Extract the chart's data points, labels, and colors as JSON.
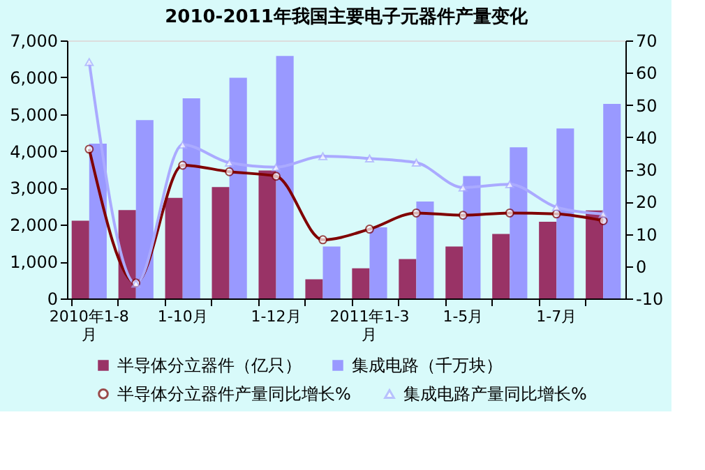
{
  "chart_data": {
    "type": "bar",
    "title": "2010-2011年我国主要电子元器件产量变化",
    "categories": [
      "2010年1-8月",
      null,
      "1-10月",
      null,
      "1-12月",
      null,
      "2011年1-3月",
      null,
      "1-5月",
      null,
      "1-7月",
      null
    ],
    "series": [
      {
        "name": "半导体分立器件（亿只）",
        "color": "#993366",
        "values": [
          2110,
          2400,
          2730,
          3020,
          3470,
          520,
          820,
          1070,
          1410,
          1750,
          2080,
          2390
        ]
      },
      {
        "name": "集成电路（千万块）",
        "color": "#9999ff",
        "values": [
          4200,
          4840,
          5430,
          5990,
          6580,
          1410,
          1930,
          2630,
          3320,
          4100,
          4610,
          5280
        ]
      },
      {
        "name": "半导体分立器件产量同比增长%",
        "type": "line",
        "axis": "y2",
        "marker": "circle",
        "color": "#800000",
        "values": [
          36.3,
          -5.2,
          31.3,
          29.3,
          27.9,
          8.2,
          11.5,
          16.5,
          15.8,
          16.5,
          16.2,
          14.1
        ]
      },
      {
        "name": "集成电路产量同比增长%",
        "type": "line",
        "axis": "y2",
        "marker": "triangle",
        "color": "#aaaaff",
        "values": [
          63.3,
          -5.4,
          37.7,
          32.1,
          30.7,
          34.1,
          33.4,
          32.1,
          24.4,
          25.4,
          18.3,
          16.2
        ]
      }
    ],
    "ylim": [
      0,
      7000
    ],
    "yticks": [
      0,
      {
        "value": 1000,
        "label": "1,000"
      },
      {
        "value": 2000,
        "label": "2,000"
      },
      {
        "value": 3000,
        "label": "3,000"
      },
      {
        "value": 4000,
        "label": "4,000"
      },
      {
        "value": 5000,
        "label": "5,000"
      },
      {
        "value": 6000,
        "label": "6,000"
      },
      {
        "value": 7000,
        "label": "7,000"
      }
    ],
    "y2lim": [
      -10,
      70
    ],
    "y2ticks": [
      -10,
      0,
      10,
      20,
      30,
      40,
      50,
      60,
      70
    ],
    "grid": false,
    "legend": "bottom"
  }
}
